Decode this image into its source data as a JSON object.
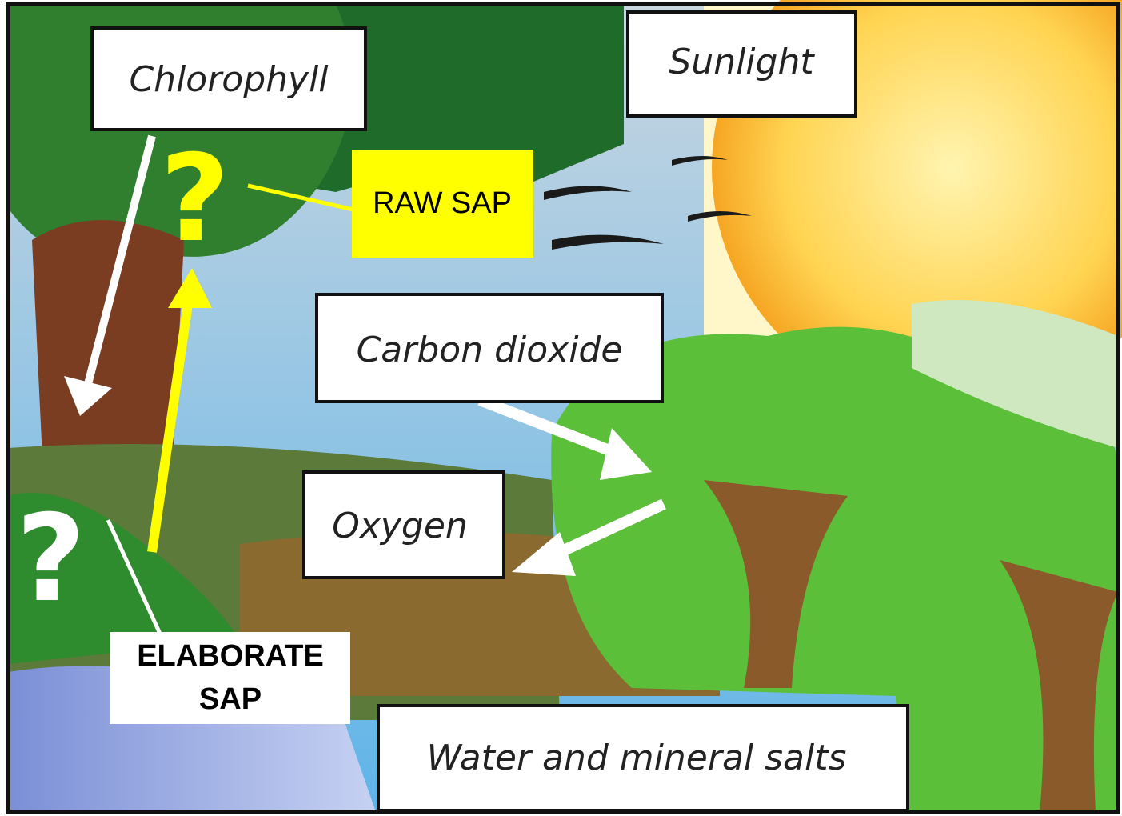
{
  "labels": {
    "chlorophyll": "Chlorophyll",
    "sunlight": "Sunlight",
    "raw_sap": "RAW SAP",
    "carbon_dioxide": "Carbon dioxide",
    "oxygen": "Oxygen",
    "elaborate_sap": [
      "ELABORATE",
      "SAP"
    ],
    "water": "Water and mineral salts"
  }
}
